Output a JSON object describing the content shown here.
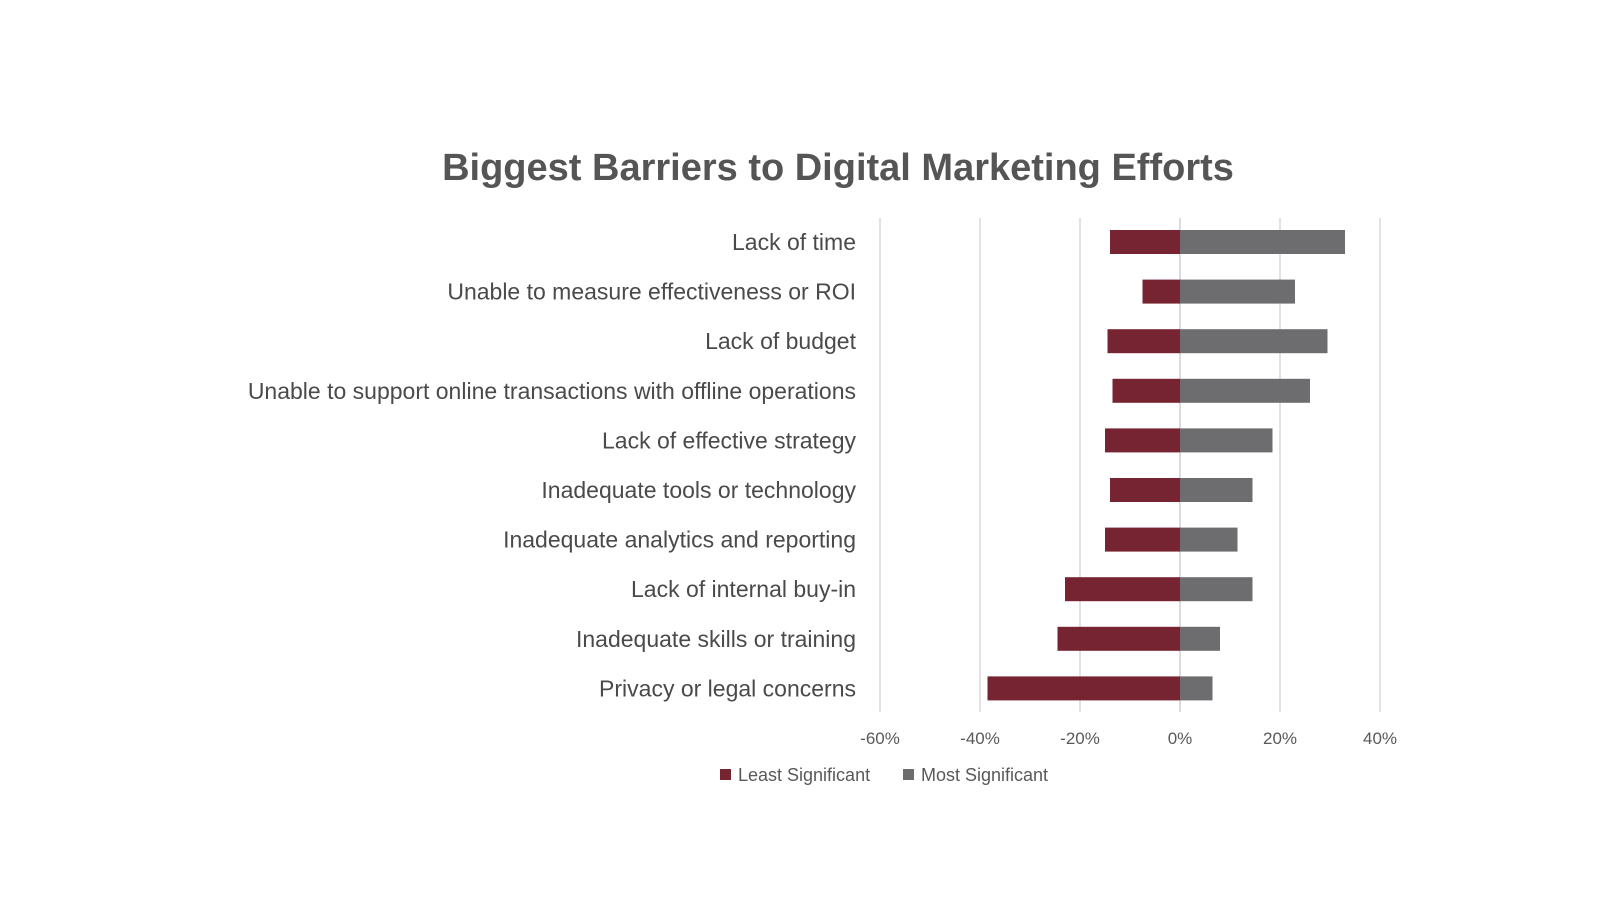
{
  "chart_data": {
    "type": "bar",
    "orientation": "horizontal-diverging",
    "title": "Biggest Barriers to Digital Marketing Efforts",
    "categories": [
      "Lack of time",
      "Unable to measure effectiveness or ROI",
      "Lack of budget",
      "Unable to support online transactions with offline operations",
      "Lack of effective strategy",
      "Inadequate tools or technology",
      "Inadequate analytics and reporting",
      "Lack of internal buy-in",
      "Inadequate skills or training",
      "Privacy or legal concerns"
    ],
    "series": [
      {
        "name": "Least Significant",
        "color": "#772432",
        "values": [
          -14,
          -7.5,
          -14.5,
          -13.5,
          -15,
          -14,
          -15,
          -23,
          -24.5,
          -38.5
        ]
      },
      {
        "name": "Most Significant",
        "color": "#6d6d70",
        "values": [
          33,
          23,
          29.5,
          26,
          18.5,
          14.5,
          11.5,
          14.5,
          8,
          6.5
        ]
      }
    ],
    "xlim": [
      -60,
      40
    ],
    "xticks": [
      -60,
      -40,
      -20,
      0,
      20,
      40
    ],
    "xtick_labels": [
      "-60%",
      "-40%",
      "-20%",
      "0%",
      "20%",
      "40%"
    ],
    "xlabel": "",
    "ylabel": "",
    "grid": "vertical",
    "legend": "bottom"
  }
}
